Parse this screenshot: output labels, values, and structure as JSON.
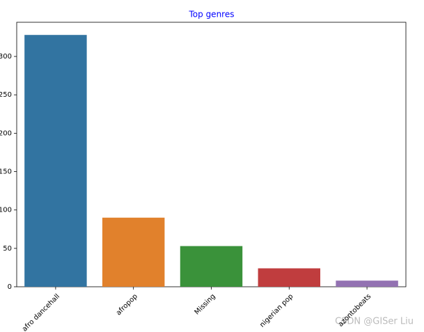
{
  "chart_data": {
    "type": "bar",
    "title": "Top genres",
    "categories": [
      "afro dancehall",
      "afropop",
      "Missing",
      "nigerian pop",
      "azontobeats"
    ],
    "values": [
      328,
      90,
      53,
      24,
      8
    ],
    "colors": [
      "#3274a1",
      "#e1812c",
      "#3a923a",
      "#c03d3e",
      "#9372b2"
    ],
    "ylim": [
      0,
      344.5
    ],
    "yticks": [
      0,
      50,
      100,
      150,
      200,
      250,
      300
    ]
  },
  "watermark": "CSDN @GISer Liu"
}
